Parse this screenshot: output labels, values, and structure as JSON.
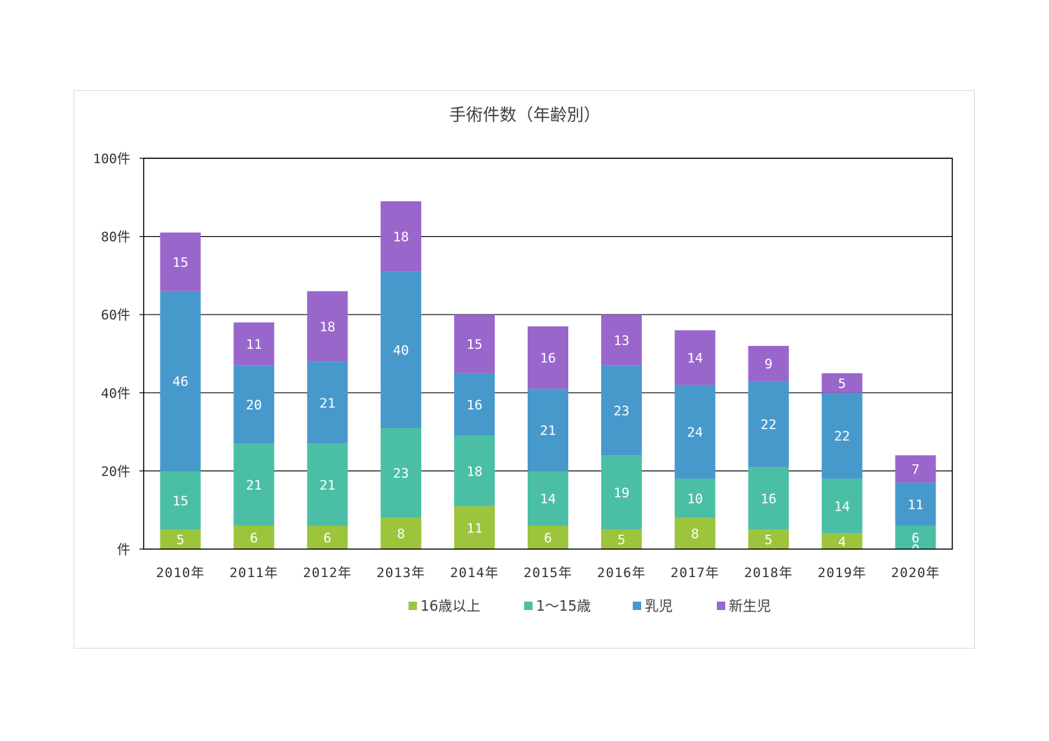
{
  "chart_data": {
    "type": "bar",
    "stacked": true,
    "title": "手術件数（年齢別）",
    "categories": [
      "2010年",
      "2011年",
      "2012年",
      "2013年",
      "2014年",
      "2015年",
      "2016年",
      "2017年",
      "2018年",
      "2019年",
      "2020年"
    ],
    "series": [
      {
        "name": "16歳以上",
        "color": "#9cc43d",
        "values": [
          5,
          6,
          6,
          8,
          11,
          6,
          5,
          8,
          5,
          4,
          0
        ]
      },
      {
        "name": "1～15歳",
        "color": "#4bbfa5",
        "values": [
          15,
          21,
          21,
          23,
          18,
          14,
          19,
          10,
          16,
          14,
          6
        ]
      },
      {
        "name": "乳児",
        "color": "#4799cc",
        "values": [
          46,
          20,
          21,
          40,
          16,
          21,
          23,
          24,
          22,
          22,
          11
        ]
      },
      {
        "name": "新生児",
        "color": "#9966cc",
        "values": [
          15,
          11,
          18,
          18,
          15,
          16,
          13,
          14,
          9,
          5,
          7
        ]
      }
    ],
    "ylim": [
      0,
      100
    ],
    "yticks": [
      0,
      20,
      40,
      60,
      80,
      100
    ],
    "ytick_labels": [
      "件",
      "20件",
      "40件",
      "60件",
      "80件",
      "100件"
    ],
    "grid": true,
    "legend_position": "bottom"
  }
}
